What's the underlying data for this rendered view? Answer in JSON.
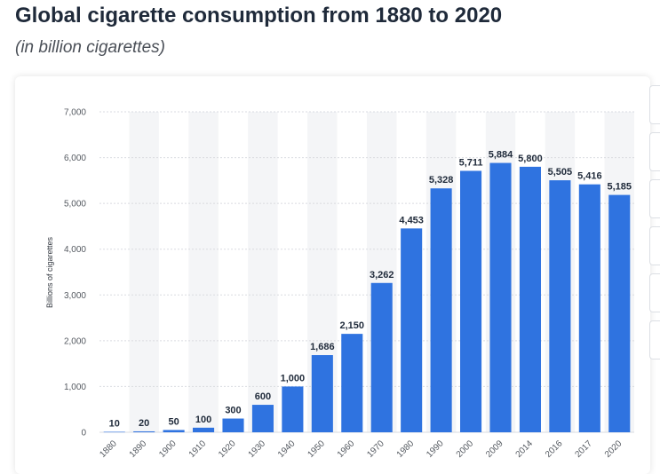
{
  "header": {
    "title": "Global cigarette consumption from 1880 to 2020",
    "subtitle": "(in billion cigarettes)"
  },
  "colors": {
    "bar": "#2f73e0",
    "band": "#f4f5f7",
    "grid": "#d9dbe0",
    "title": "#1f2a3a"
  },
  "chart_data": {
    "type": "bar",
    "title": "Global cigarette consumption from 1880 to 2020",
    "subtitle": "(in billion cigarettes)",
    "xlabel": "",
    "ylabel": "Billions of cigarettes",
    "ylim": [
      0,
      7000
    ],
    "yticks": [
      0,
      1000,
      2000,
      3000,
      4000,
      5000,
      6000,
      7000
    ],
    "ytick_labels": [
      "0",
      "1,000",
      "2,000",
      "3,000",
      "4,000",
      "5,000",
      "6,000",
      "7,000"
    ],
    "grid": true,
    "categories": [
      "1880",
      "1890",
      "1900",
      "1910",
      "1920",
      "1930",
      "1940",
      "1950",
      "1960",
      "1970",
      "1980",
      "1990",
      "2000",
      "2009",
      "2014",
      "2016",
      "2017",
      "2020"
    ],
    "values": [
      10,
      20,
      50,
      100,
      300,
      600,
      1000,
      1686,
      2150,
      3262,
      4453,
      5328,
      5711,
      5884,
      5800,
      5505,
      5416,
      5185
    ],
    "value_labels": [
      "10",
      "20",
      "50",
      "100",
      "300",
      "600",
      "1,000",
      "1,686",
      "2,150",
      "3,262",
      "4,453",
      "5,328",
      "5,711",
      "5,884",
      "5,800",
      "5,505",
      "5,416",
      "5,185"
    ]
  }
}
